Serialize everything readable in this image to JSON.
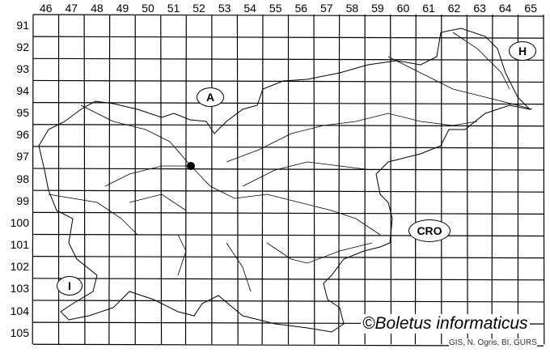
{
  "map": {
    "columns": [
      "46",
      "47",
      "48",
      "49",
      "50",
      "51",
      "52",
      "53",
      "54",
      "55",
      "56",
      "57",
      "58",
      "59",
      "60",
      "61",
      "62",
      "63",
      "64",
      "65"
    ],
    "rows": [
      "91",
      "92",
      "93",
      "94",
      "95",
      "96",
      "97",
      "98",
      "99",
      "100",
      "101",
      "102",
      "103",
      "104",
      "105"
    ],
    "countries": [
      {
        "code": "A"
      },
      {
        "code": "H"
      },
      {
        "code": "CRO"
      },
      {
        "code": "I"
      }
    ],
    "occurrence": {
      "column": "51",
      "row": "97"
    },
    "credit": "©Boletus informaticus",
    "source": "GIS, N. Ogris, BI, GURS"
  }
}
